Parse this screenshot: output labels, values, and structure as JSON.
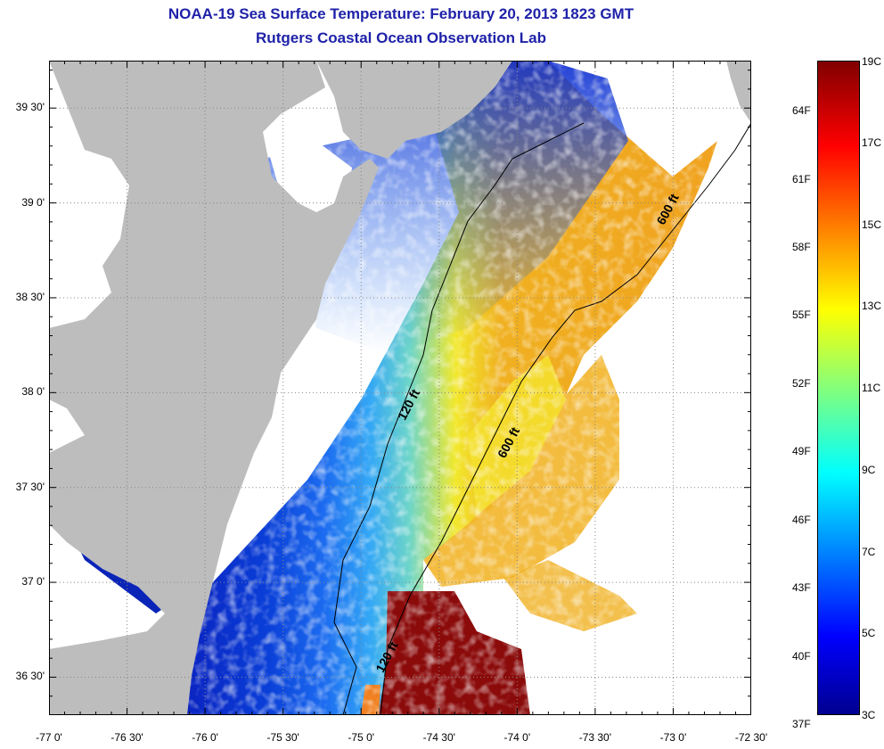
{
  "title": "NOAA-19 Sea Surface Temperature:  February 20, 2013 1823 GMT",
  "subtitle": "Rutgers Coastal Ocean Observation Lab",
  "map": {
    "lon_range": [
      -77.0,
      -72.5
    ],
    "lat_range": [
      36.3,
      39.75
    ],
    "lon_ticks": [
      {
        "value": -77.0,
        "label": "-77 0'"
      },
      {
        "value": -76.5,
        "label": "-76 30'"
      },
      {
        "value": -76.0,
        "label": "-76 0'"
      },
      {
        "value": -75.5,
        "label": "-75 30'"
      },
      {
        "value": -75.0,
        "label": "-75 0'"
      },
      {
        "value": -74.5,
        "label": "-74 30'"
      },
      {
        "value": -74.0,
        "label": "-74 0'"
      },
      {
        "value": -73.5,
        "label": "-73 30'"
      },
      {
        "value": -73.0,
        "label": "-73 0'"
      },
      {
        "value": -72.5,
        "label": "-72 30'"
      }
    ],
    "lat_ticks": [
      {
        "value": 39.5,
        "label": "39 30'"
      },
      {
        "value": 39.0,
        "label": "39 0'"
      },
      {
        "value": 38.5,
        "label": "38 30'"
      },
      {
        "value": 38.0,
        "label": "38 0'"
      },
      {
        "value": 37.5,
        "label": "37 30'"
      },
      {
        "value": 37.0,
        "label": "37 0'"
      },
      {
        "value": 36.5,
        "label": "36 30'"
      }
    ],
    "grid": "dotted",
    "contours": [
      {
        "label": "120 ft",
        "label_positions": [
          {
            "lon": -74.72,
            "lat": 37.85
          },
          {
            "lon": -74.86,
            "lat": 36.52
          }
        ]
      },
      {
        "label": "600 ft",
        "label_positions": [
          {
            "lon": -74.08,
            "lat": 37.65
          },
          {
            "lon": -73.06,
            "lat": 38.88
          }
        ]
      }
    ],
    "colors": {
      "land": "#bdbdbd",
      "no_data": "#ffffff",
      "grid": "#888888",
      "contour": "#000000"
    }
  },
  "colorbar": {
    "range_c": [
      3,
      19
    ],
    "celsius_labels": [
      "19C",
      "17C",
      "15C",
      "13C",
      "11C",
      "9C",
      "7C",
      "5C",
      "3C"
    ],
    "celsius_values": [
      19,
      17,
      15,
      13,
      11,
      9,
      7,
      5,
      3
    ],
    "fahrenheit_labels": [
      "64F",
      "61F",
      "58F",
      "55F",
      "52F",
      "49F",
      "46F",
      "43F",
      "40F",
      "37F"
    ],
    "fahrenheit_values": [
      64,
      61,
      58,
      55,
      52,
      49,
      46,
      43,
      40,
      37
    ],
    "colormap": "jet"
  }
}
